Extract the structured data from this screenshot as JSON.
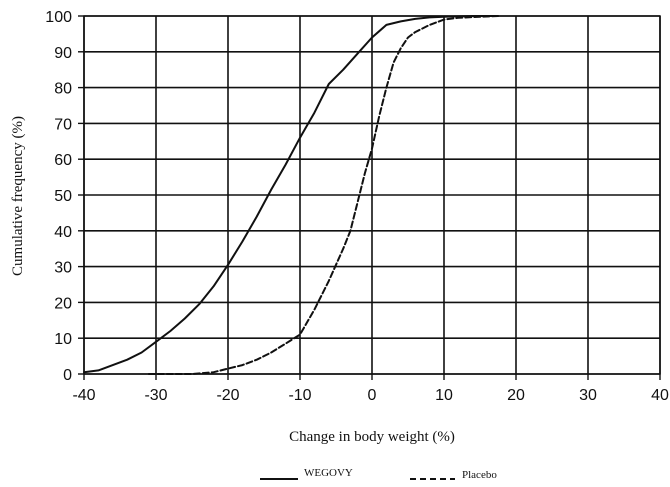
{
  "chart_data": {
    "type": "line",
    "xlabel": "Change in body weight (%)",
    "ylabel": "Cumulative frequency (%)",
    "xlim": [
      -40,
      40
    ],
    "ylim": [
      0,
      100
    ],
    "xticks": [
      -40,
      -30,
      -20,
      -10,
      0,
      10,
      20,
      30,
      40
    ],
    "yticks": [
      0,
      10,
      20,
      30,
      40,
      50,
      60,
      70,
      80,
      90,
      100
    ],
    "x_tick_labels": [
      "-40",
      "-30",
      "-20",
      "-10",
      "0",
      "10",
      "20",
      "30",
      "40"
    ],
    "y_tick_labels": [
      "0",
      "10",
      "20",
      "30",
      "40",
      "50",
      "60",
      "70",
      "80",
      "90",
      "100"
    ],
    "grid": true,
    "legend_position": "bottom",
    "series": [
      {
        "name": "WEGOVY",
        "style": "solid",
        "color": "#111111",
        "x": [
          -40,
          -38,
          -36,
          -34,
          -32,
          -30,
          -28,
          -26,
          -24,
          -22,
          -20,
          -18,
          -16,
          -14,
          -12,
          -10,
          -8,
          -6,
          -4,
          -2,
          0,
          2,
          4,
          6,
          8,
          10,
          12,
          14,
          17.5
        ],
        "y": [
          0.5,
          1,
          2.5,
          4,
          6,
          9,
          12,
          15.5,
          19.5,
          24.5,
          30.5,
          37,
          44,
          51.5,
          58.5,
          66,
          73,
          81,
          85,
          89.5,
          94,
          97.5,
          98.5,
          99.2,
          99.6,
          99.8,
          99.9,
          100,
          100
        ]
      },
      {
        "name": "Placebo",
        "style": "dashed",
        "color": "#111111",
        "x": [
          -31,
          -28,
          -25,
          -22,
          -20,
          -18,
          -16,
          -14,
          -12,
          -10,
          -8,
          -6,
          -4,
          -3,
          -2,
          -1,
          0,
          1,
          2,
          3,
          4,
          5,
          6,
          8,
          10,
          12,
          15,
          17.5
        ],
        "y": [
          0,
          0,
          0,
          0.5,
          1.5,
          2.5,
          4,
          6,
          8.5,
          11,
          18,
          26,
          35,
          40,
          48,
          56,
          63,
          72,
          80,
          87,
          91,
          94,
          95.5,
          97.5,
          99,
          99.5,
          99.8,
          100
        ]
      }
    ]
  }
}
